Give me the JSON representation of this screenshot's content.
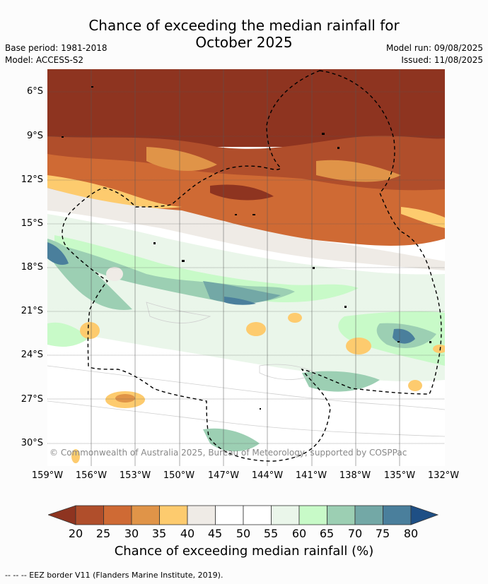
{
  "title_line1": "Chance of exceeding the median rainfall for",
  "title_line2": "October 2025",
  "base_period": "Base period: 1981-2018",
  "model": "Model: ACCESS-S2",
  "model_run": "Model run: 09/08/2025",
  "issued": "Issued: 11/08/2025",
  "copyright": "© Commonwealth of Australia 2025, Bureau of Meteorology, supported by COSPPac",
  "y_labels": [
    "6°S",
    "9°S",
    "12°S",
    "15°S",
    "18°S",
    "21°S",
    "24°S",
    "27°S",
    "30°S"
  ],
  "x_labels": [
    "159°W",
    "156°W",
    "153°W",
    "150°W",
    "147°W",
    "144°W",
    "141°W",
    "138°W",
    "135°W",
    "132°W"
  ],
  "colorbar": {
    "ticks": [
      "20",
      "25",
      "30",
      "35",
      "40",
      "45",
      "50",
      "55",
      "60",
      "65",
      "70",
      "75",
      "80"
    ],
    "colors": [
      "#8e3420",
      "#b04e2b",
      "#cf6a34",
      "#e09448",
      "#fdcb6e",
      "#efebe6",
      "#ffffff",
      "#ffffff",
      "#eaf6ea",
      "#c8fac8",
      "#9ccfb3",
      "#73a8a6",
      "#4a7f9c",
      "#1e4f85"
    ],
    "label": "Chance of exceeding median rainfall (%)"
  },
  "footer": "--  --  -- EEZ border V11 (Flanders Marine Institute, 2019)."
}
